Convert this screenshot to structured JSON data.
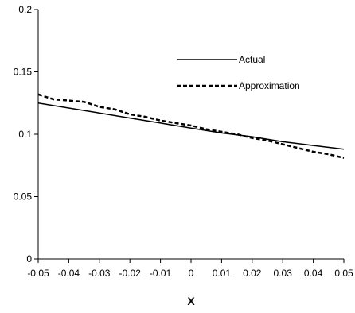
{
  "chart_data": {
    "type": "line",
    "title": "",
    "xlabel": "X",
    "ylabel": "",
    "xlim": [
      -0.05,
      0.05
    ],
    "ylim": [
      0,
      0.2
    ],
    "x_ticks": [
      -0.05,
      -0.04,
      -0.03,
      -0.02,
      -0.01,
      0,
      0.01,
      0.02,
      0.03,
      0.04,
      0.05
    ],
    "x_tick_labels": [
      "-0.05",
      "-0.04",
      "-0.03",
      "-0.02",
      "-0.01",
      "0",
      "0.01",
      "0.02",
      "0.03",
      "0.04",
      "0.05"
    ],
    "y_ticks": [
      0,
      0.05,
      0.1,
      0.15,
      0.2
    ],
    "y_tick_labels": [
      "0",
      "0.05",
      "0.1",
      "0.15",
      "0.2"
    ],
    "grid": false,
    "legend_position": "top-right",
    "series": [
      {
        "name": "Actual",
        "style": "solid",
        "color": "#000000",
        "x": [
          -0.05,
          -0.04,
          -0.03,
          -0.02,
          -0.01,
          0,
          0.01,
          0.02,
          0.03,
          0.04,
          0.05
        ],
        "y": [
          0.125,
          0.121,
          0.117,
          0.113,
          0.109,
          0.105,
          0.101,
          0.098,
          0.094,
          0.091,
          0.088
        ]
      },
      {
        "name": "Approximation",
        "style": "dashed",
        "color": "#000000",
        "x": [
          -0.05,
          -0.045,
          -0.04,
          -0.035,
          -0.03,
          -0.025,
          -0.02,
          -0.015,
          -0.01,
          -0.005,
          0,
          0.005,
          0.01,
          0.015,
          0.02,
          0.025,
          0.03,
          0.035,
          0.04,
          0.045,
          0.05
        ],
        "y": [
          0.132,
          0.128,
          0.127,
          0.126,
          0.122,
          0.12,
          0.116,
          0.114,
          0.111,
          0.109,
          0.107,
          0.104,
          0.102,
          0.1,
          0.097,
          0.095,
          0.092,
          0.089,
          0.086,
          0.084,
          0.081
        ]
      }
    ]
  }
}
